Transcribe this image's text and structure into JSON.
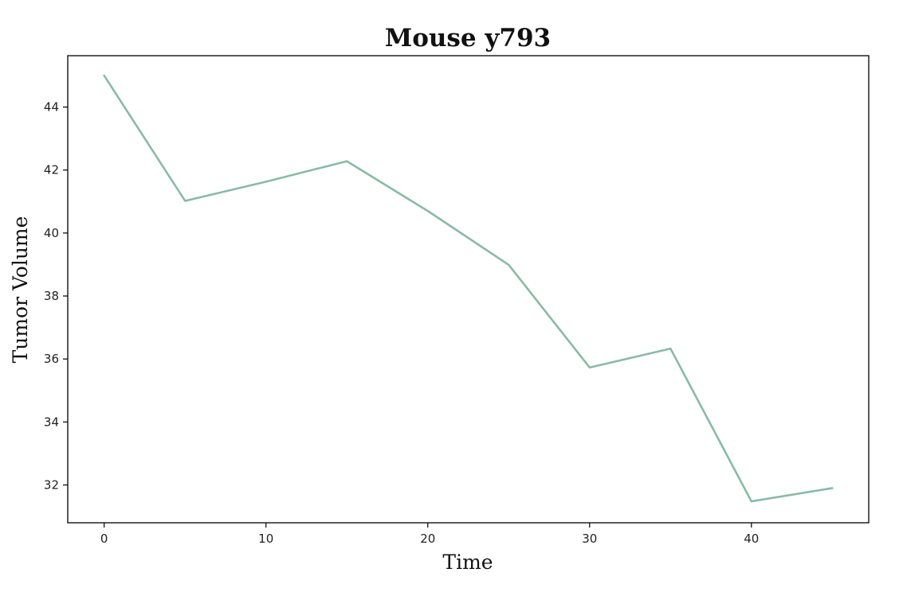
{
  "chart_data": {
    "type": "line",
    "title": "Mouse y793",
    "xlabel": "Time",
    "ylabel": "Tumor Volume",
    "xlim": [
      -2.25,
      47.25
    ],
    "ylim": [
      30.8,
      45.63
    ],
    "xticks": [
      0,
      10,
      20,
      30,
      40
    ],
    "yticks": [
      32,
      34,
      36,
      38,
      40,
      42,
      44
    ],
    "grid": false,
    "series": [
      {
        "color": "#88bba5",
        "x": [
          0,
          5,
          10,
          15,
          20,
          25,
          30,
          35,
          40,
          45
        ],
        "y": [
          45.0,
          41.02,
          41.63,
          42.28,
          40.7,
          38.99,
          35.73,
          36.33,
          31.48,
          31.9
        ]
      }
    ]
  }
}
